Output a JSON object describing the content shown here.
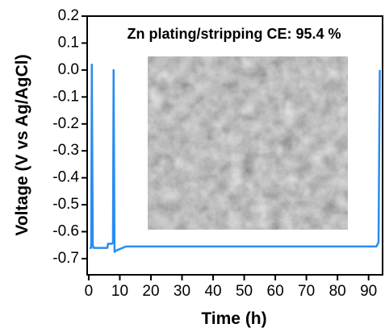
{
  "chart_data": {
    "type": "line",
    "annotation": "Zn plating/stripping CE: 95.4 %",
    "xlabel": "Time (h)",
    "ylabel": "Voltage (V vs Ag/AgCl)",
    "x": [
      0.3,
      0.8,
      1.0,
      1.3,
      1.6,
      6.0,
      6.2,
      7.5,
      7.8,
      8.0,
      8.3,
      8.8,
      12,
      92.5,
      93.2,
      93.6
    ],
    "series": [
      {
        "color": "#2a8cf0",
        "values": [
          -0.66,
          -0.66,
          0.02,
          -0.65,
          -0.66,
          -0.66,
          -0.645,
          -0.645,
          -0.64,
          0.0,
          -0.675,
          -0.67,
          -0.655,
          -0.655,
          -0.64,
          0.0
        ]
      }
    ],
    "xlim": [
      -0.5,
      94.5
    ],
    "xticks": [
      0,
      10,
      20,
      30,
      40,
      50,
      60,
      70,
      80,
      90
    ],
    "ylim": [
      -0.76,
      0.2
    ],
    "yticks": [
      0.2,
      0.1,
      {
        "value": 0,
        "label": "0.0"
      },
      -0.1,
      -0.2,
      -0.3,
      -0.4,
      -0.5,
      -0.6,
      -0.7
    ]
  }
}
